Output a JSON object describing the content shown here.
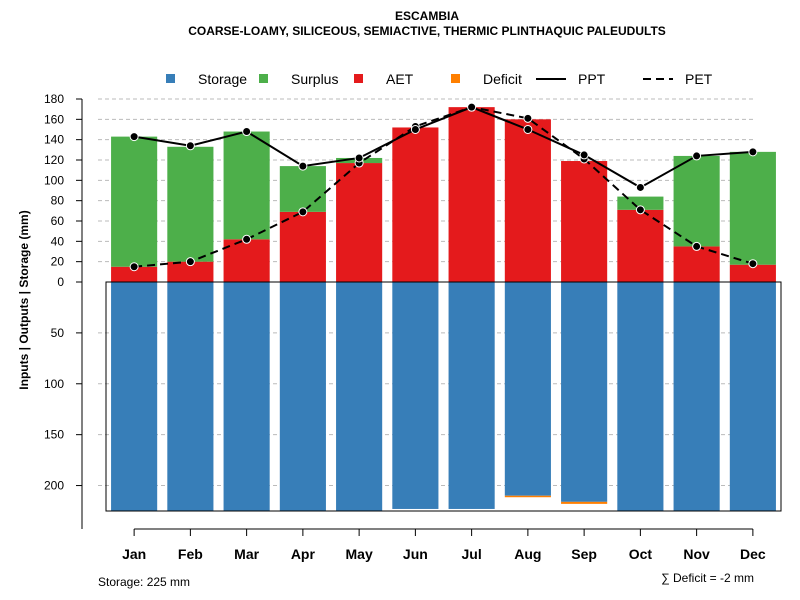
{
  "chart_data": {
    "type": "bar",
    "title": "ESCAMBIA",
    "subtitle": "COARSE-LOAMY, SILICEOUS, SEMIACTIVE, THERMIC PLINTHAQUIC PALEUDULTS",
    "ylabel": "Inputs | Outputs | Storage    (mm)",
    "categories": [
      "Jan",
      "Feb",
      "Mar",
      "Apr",
      "May",
      "Jun",
      "Jul",
      "Aug",
      "Sep",
      "Oct",
      "Nov",
      "Dec"
    ],
    "legend": [
      {
        "key": "storage",
        "label": "Storage",
        "type": "square",
        "color": "#377EB8"
      },
      {
        "key": "surplus",
        "label": "Surplus",
        "type": "square",
        "color": "#4DAF4A"
      },
      {
        "key": "aet",
        "label": "AET",
        "type": "square",
        "color": "#E41A1C"
      },
      {
        "key": "deficit",
        "label": "Deficit",
        "type": "square",
        "color": "#FF7F00"
      },
      {
        "key": "ppt",
        "label": "PPT",
        "type": "solid-line",
        "color": "#000000"
      },
      {
        "key": "pet",
        "label": "PET",
        "type": "dashed-line",
        "color": "#000000"
      }
    ],
    "series": [
      {
        "name": "AET",
        "values": [
          15,
          20,
          42,
          69,
          117,
          152,
          172,
          160,
          119,
          71,
          35,
          17
        ]
      },
      {
        "name": "Surplus",
        "values": [
          128,
          113,
          106,
          45,
          5,
          0,
          0,
          0,
          0,
          13,
          89,
          111
        ]
      },
      {
        "name": "PPT",
        "values": [
          143,
          134,
          148,
          114,
          122,
          150,
          172,
          150,
          125,
          93,
          124,
          128
        ]
      },
      {
        "name": "PET",
        "values": [
          15,
          20,
          42,
          69,
          117,
          153,
          172,
          161,
          121,
          71,
          35,
          18
        ]
      },
      {
        "name": "Storage",
        "values": [
          225,
          225,
          225,
          225,
          225,
          223,
          223,
          210,
          216,
          225,
          225,
          225
        ]
      },
      {
        "name": "Deficit",
        "values": [
          0,
          0,
          0,
          0,
          0,
          0,
          0,
          1,
          2,
          0,
          0,
          0
        ]
      }
    ],
    "yticks_top": [
      0,
      20,
      40,
      60,
      80,
      100,
      120,
      140,
      160,
      180
    ],
    "yticks_bottom": [
      50,
      100,
      150,
      200
    ],
    "ylim_top": [
      0,
      180
    ],
    "ylim_bottom": [
      0,
      225
    ],
    "storage_capacity_text": "Storage: 225 mm",
    "deficit_sum_text": "∑ Deficit = -2 mm"
  }
}
